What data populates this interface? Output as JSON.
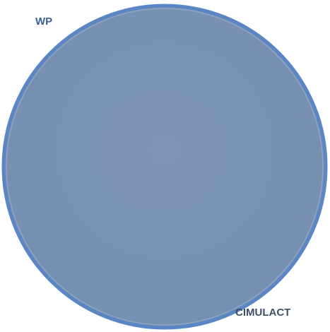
{
  "labels": {
    "top_left": "WP",
    "bottom_right": "CIMULACT"
  }
}
